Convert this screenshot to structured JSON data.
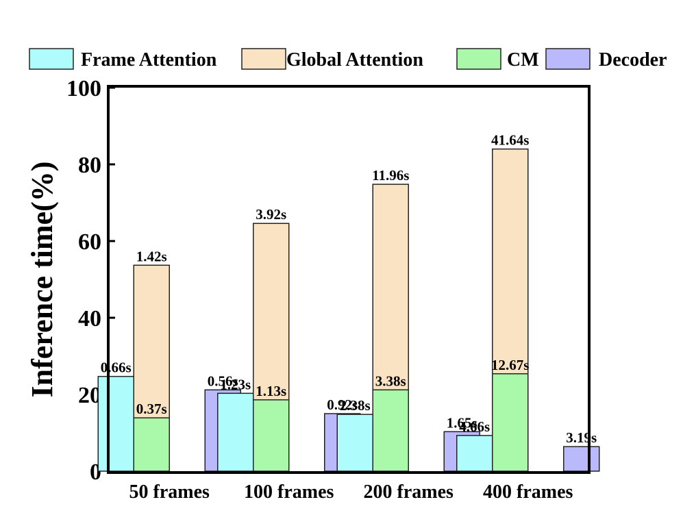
{
  "chart_data": {
    "type": "bar",
    "title": "",
    "xlabel": "",
    "ylabel": "Inference time(%)",
    "ylim": [
      0,
      100
    ],
    "yticks": [
      0,
      20,
      40,
      60,
      80,
      100
    ],
    "grid": false,
    "legend_position": "top",
    "categories": [
      "50 frames",
      "100 frames",
      "200 frames",
      "400 frames"
    ],
    "series": [
      {
        "name": "Frame Attention",
        "color": "#aefcfc",
        "values": [
          24.7,
          20.3,
          14.8,
          9.3
        ],
        "labels": [
          "0.66s",
          "1.23s",
          "2.38s",
          "4.66s"
        ]
      },
      {
        "name": "Global Attention",
        "color": "#f9e3c3",
        "values": [
          53.7,
          64.6,
          74.8,
          84.0
        ],
        "labels": [
          "1.42s",
          "3.92s",
          "11.96s",
          "41.64s"
        ]
      },
      {
        "name": "CM",
        "color": "#aaf9aa",
        "values": [
          13.9,
          18.6,
          21.2,
          25.4
        ],
        "labels": [
          "0.37s",
          "1.13s",
          "3.38s",
          "12.67s"
        ]
      },
      {
        "name": "Decoder",
        "color": "#b9b9fb",
        "values": [
          21.2,
          15.0,
          10.3,
          6.4
        ],
        "labels": [
          "0.56s",
          "0.92s",
          "1.65s",
          "3.19s"
        ]
      }
    ]
  }
}
